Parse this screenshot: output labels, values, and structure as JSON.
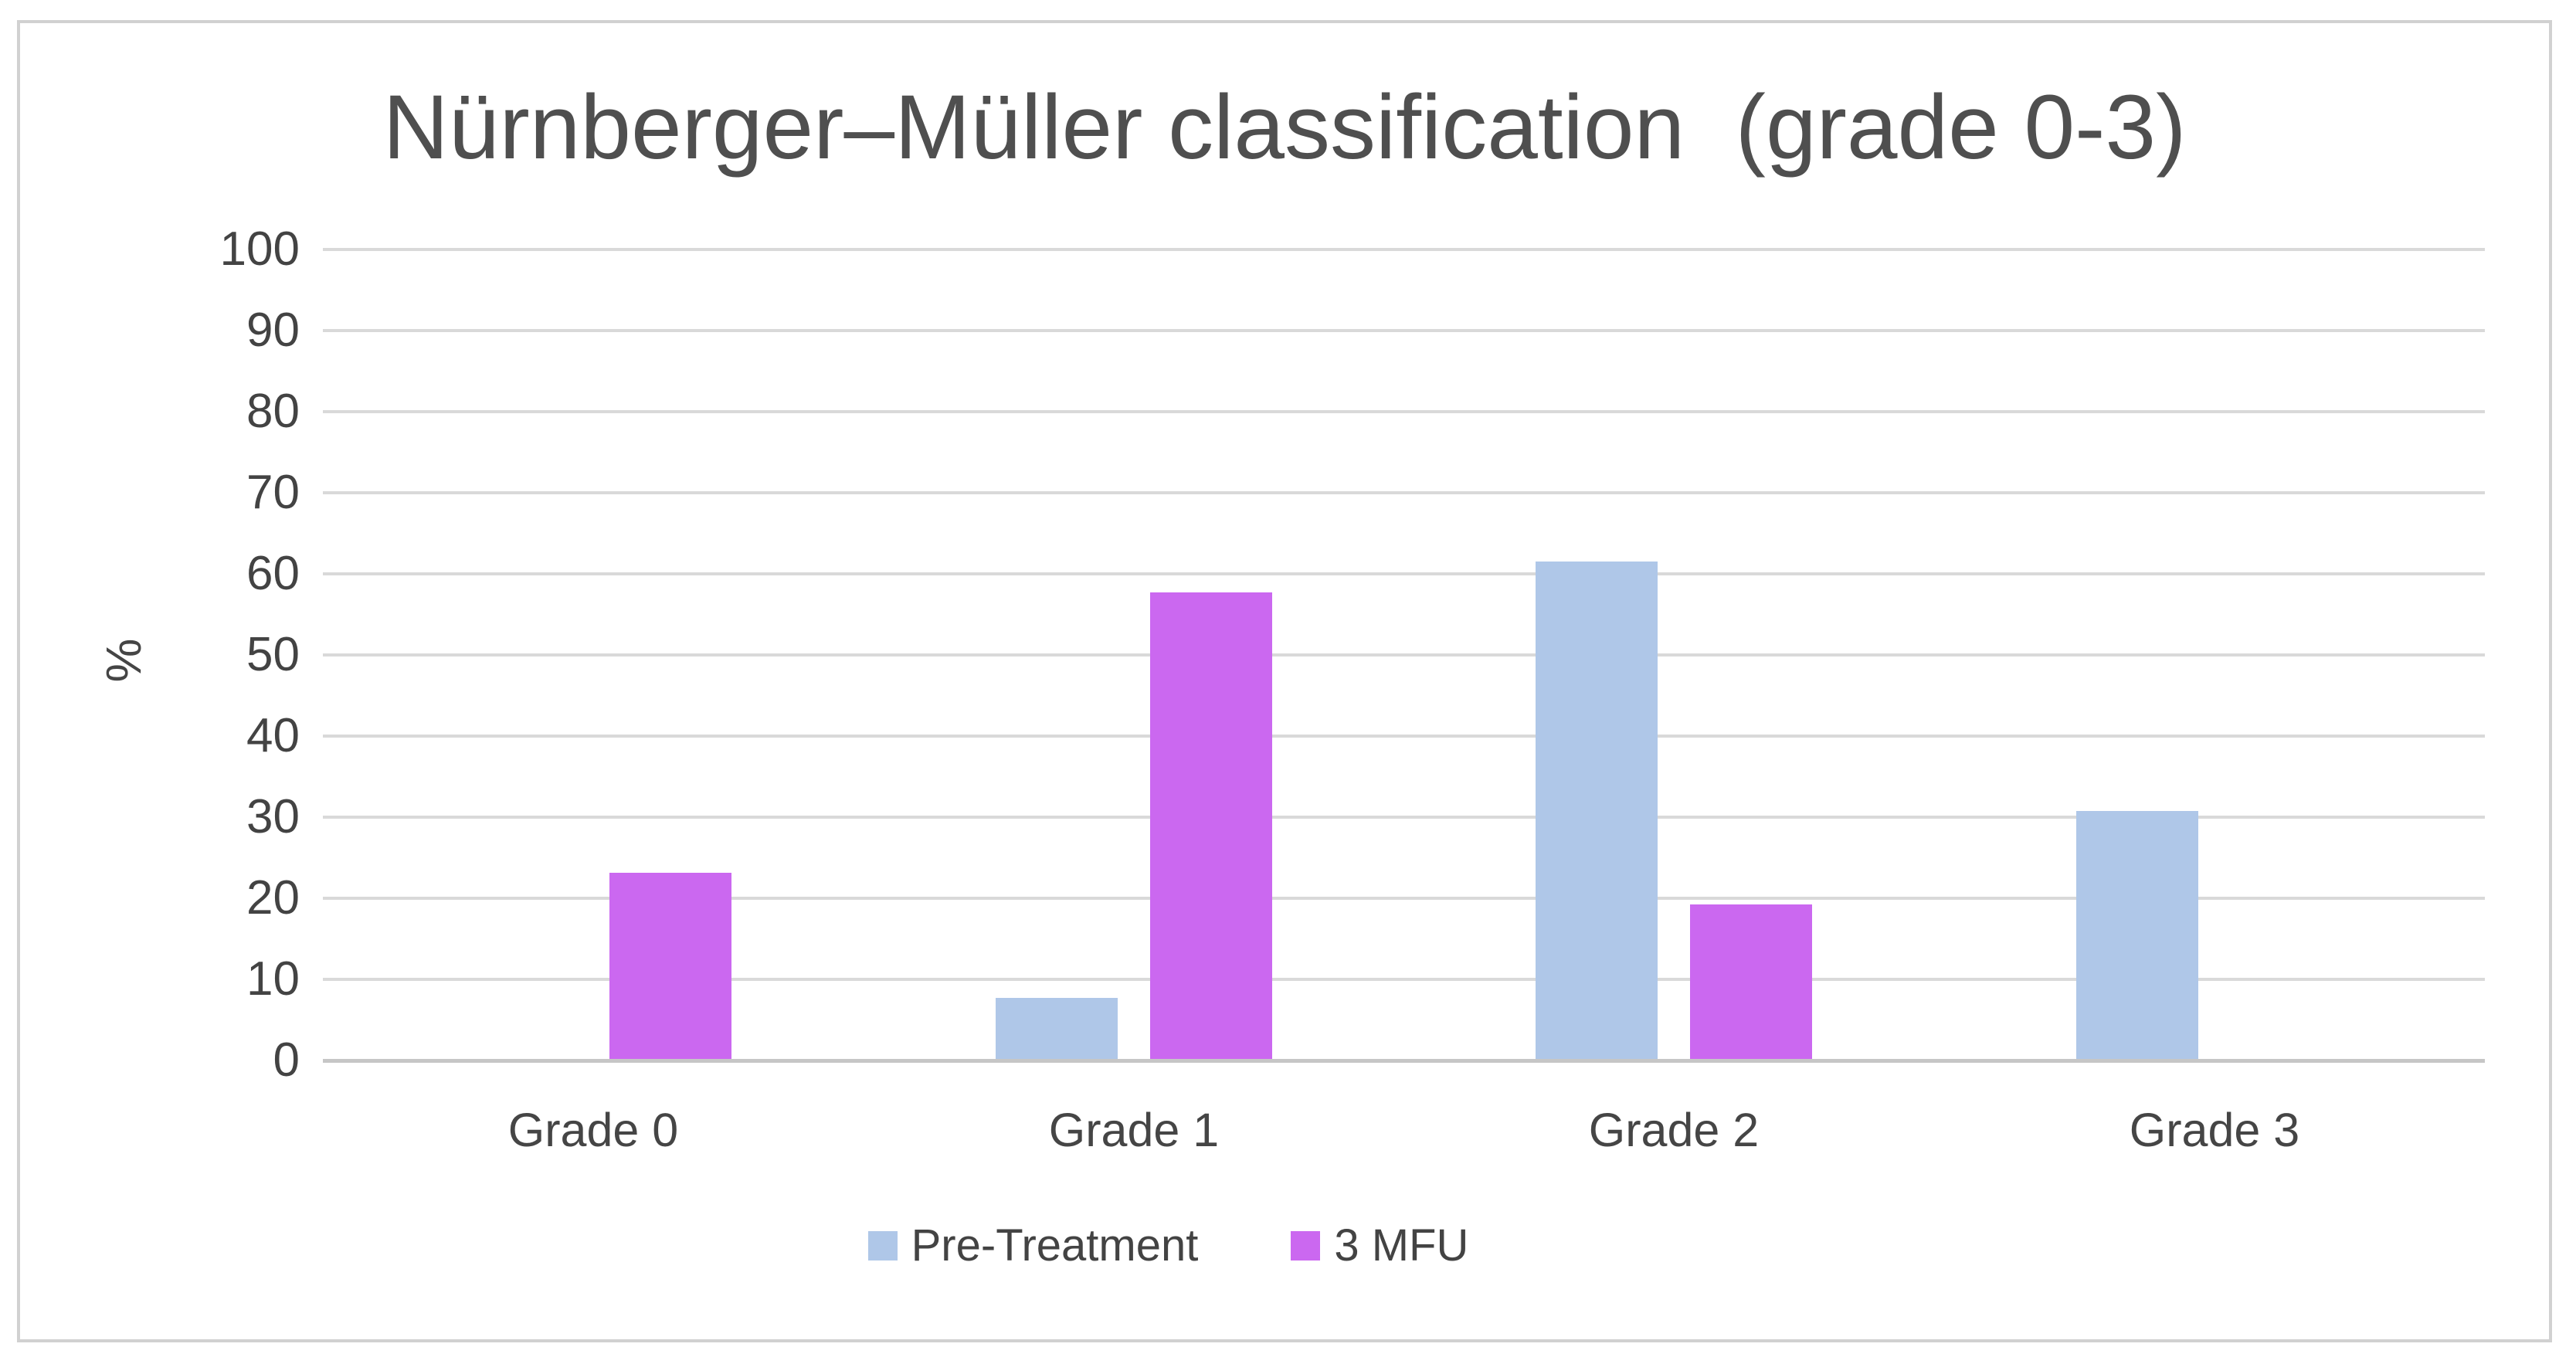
{
  "chart": {
    "ylabel_text": "%"
  },
  "chart_data": {
    "type": "bar",
    "title": "Nürnberger–Müller classification  (grade 0-3)",
    "xlabel": "",
    "ylabel": "%",
    "categories": [
      "Grade 0",
      "Grade 1",
      "Grade 2",
      "Grade 3"
    ],
    "series": [
      {
        "name": "Pre-Treatment",
        "color": "#afc7e8",
        "values": [
          0,
          7.7,
          61.5,
          30.8
        ]
      },
      {
        "name": "3 MFU",
        "color": "#cb68f0",
        "values": [
          23.1,
          57.7,
          19.2,
          0
        ]
      }
    ],
    "ylim": [
      0,
      100
    ],
    "yticks": [
      0,
      10,
      20,
      30,
      40,
      50,
      60,
      70,
      80,
      90,
      100
    ],
    "grid": true,
    "gridline_color": "#d9d9d9",
    "legend_position": "bottom",
    "frame_border_color": "#d1d1d1",
    "text_color": "#454545"
  }
}
